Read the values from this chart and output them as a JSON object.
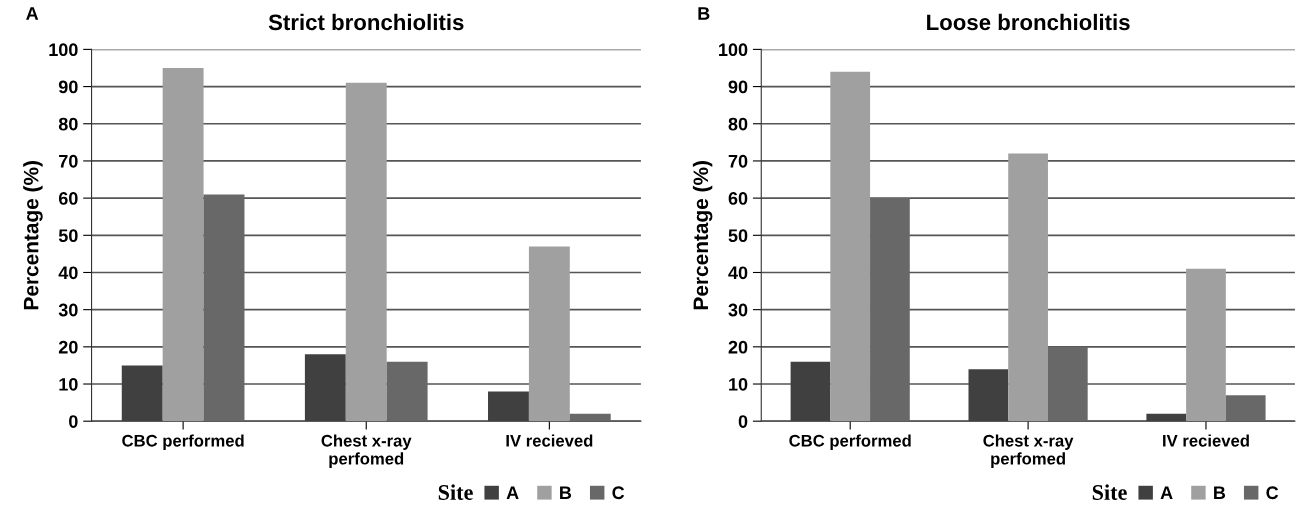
{
  "chart_data": [
    {
      "type": "bar",
      "title": "Strict bronchiolitis",
      "ylabel": "Percentage (%)",
      "legend_title": "Site",
      "annotations": [
        "A"
      ],
      "categories": [
        "CBC performed",
        "Chest x-ray perfomed",
        "IV recieved"
      ],
      "series": [
        {
          "name": "A",
          "color": "#404040",
          "values": [
            15,
            18,
            8
          ]
        },
        {
          "name": "B",
          "color": "#a0a0a0",
          "values": [
            95,
            91,
            47
          ]
        },
        {
          "name": "C",
          "color": "#686868",
          "values": [
            61,
            16,
            2
          ]
        }
      ],
      "ylim": [
        0,
        100
      ],
      "yticks": [
        0,
        10,
        20,
        30,
        40,
        50,
        60,
        70,
        80,
        90,
        100
      ],
      "grid": "y",
      "legend": "bottom right"
    },
    {
      "type": "bar",
      "title": "Loose bronchiolitis",
      "ylabel": "Percentage (%)",
      "legend_title": "Site",
      "annotations": [
        "B"
      ],
      "categories": [
        "CBC performed",
        "Chest x-ray perfomed",
        "IV recieved"
      ],
      "series": [
        {
          "name": "A",
          "color": "#404040",
          "values": [
            16,
            14,
            2
          ]
        },
        {
          "name": "B",
          "color": "#a0a0a0",
          "values": [
            94,
            72,
            41
          ]
        },
        {
          "name": "C",
          "color": "#686868",
          "values": [
            60,
            20,
            7
          ]
        }
      ],
      "ylim": [
        0,
        100
      ],
      "yticks": [
        0,
        10,
        20,
        30,
        40,
        50,
        60,
        70,
        80,
        90,
        100
      ],
      "grid": "y",
      "legend": "bottom right"
    }
  ]
}
